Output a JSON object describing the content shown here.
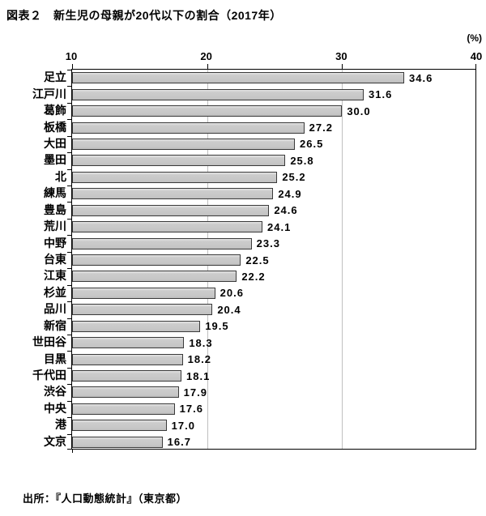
{
  "title": "図表２　新生児の母親が20代以下の割合（2017年）",
  "unit_label": "(%)",
  "source": "出所：『人口動態統計』（東京都）",
  "chart_data": {
    "type": "bar",
    "orientation": "horizontal",
    "title": "図表２　新生児の母親が20代以下の割合（2017年）",
    "xlabel": "(%)",
    "categories": [
      "足立",
      "江戸川",
      "葛飾",
      "板橋",
      "大田",
      "墨田",
      "北",
      "練馬",
      "豊島",
      "荒川",
      "中野",
      "台東",
      "江東",
      "杉並",
      "品川",
      "新宿",
      "世田谷",
      "目黒",
      "千代田",
      "渋谷",
      "中央",
      "港",
      "文京"
    ],
    "values": [
      34.6,
      31.6,
      30.0,
      27.2,
      26.5,
      25.8,
      25.2,
      24.9,
      24.6,
      24.1,
      23.3,
      22.5,
      22.2,
      20.6,
      20.4,
      19.5,
      18.3,
      18.2,
      18.1,
      17.9,
      17.6,
      17.0,
      16.7
    ],
    "value_labels": [
      "34.6",
      "31.6",
      "30.0",
      "27.2",
      "26.5",
      "25.8",
      "25.2",
      "24.9",
      "24.6",
      "24.1",
      "23.3",
      "22.5",
      "22.2",
      "20.6",
      "20.4",
      "19.5",
      "18.3",
      "18.2",
      "18.1",
      "17.9",
      "17.6",
      "17.0",
      "16.7"
    ],
    "xlim": [
      10,
      40
    ],
    "x_ticks": [
      10,
      20,
      30,
      40
    ],
    "grid": true,
    "legend": false,
    "bar_color": "#c6c6c6",
    "bar_border_color": "#3a3a3a",
    "gridline_color": "#bfbfbf"
  }
}
